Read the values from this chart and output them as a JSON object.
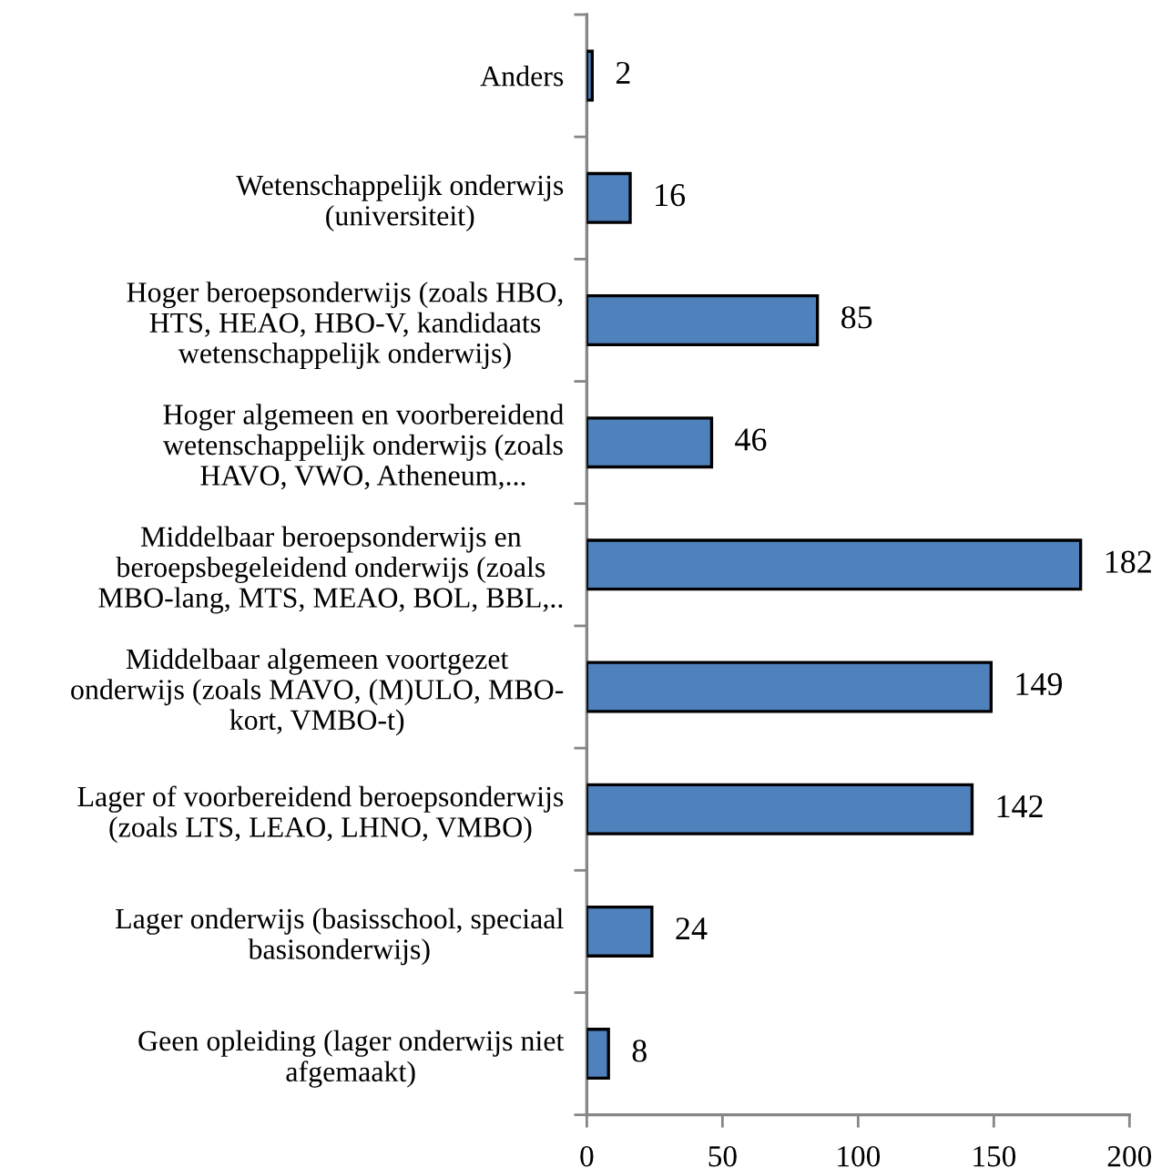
{
  "chart_data": {
    "type": "bar",
    "orientation": "horizontal",
    "categories": [
      "Anders",
      "Wetenschappelijk onderwijs\n(universiteit)",
      "Hoger beroepsonderwijs (zoals HBO,\nHTS, HEAO, HBO-V, kandidaats\nwetenschappelijk onderwijs)",
      "Hoger algemeen en voorbereidend\nwetenschappelijk onderwijs (zoals\nHAVO, VWO, Atheneum,...",
      "Middelbaar beroepsonderwijs en\nberoepsbegeleidend onderwijs (zoals\nMBO-lang, MTS, MEAO, BOL, BBL,..",
      "Middelbaar algemeen voortgezet\nonderwijs (zoals MAVO, (M)ULO, MBO-\nkort, VMBO-t)",
      "Lager of voorbereidend beroepsonderwijs\n(zoals LTS, LEAO, LHNO, VMBO)",
      "Lager onderwijs (basisschool, speciaal\nbasisonderwijs)",
      "Geen opleiding (lager onderwijs niet\nafgemaakt)"
    ],
    "values": [
      2,
      16,
      85,
      46,
      182,
      149,
      142,
      24,
      8
    ],
    "color": "#4f81bd",
    "xlim": [
      0,
      200
    ],
    "xticks": [
      0,
      50,
      100,
      150,
      200
    ],
    "data_labels": true
  }
}
